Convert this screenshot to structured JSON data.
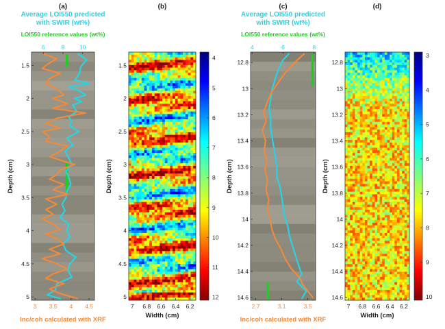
{
  "chart_data": [
    {
      "panel": "(a)",
      "type": "line",
      "top_title_line1": "Average LOI550 predicted",
      "top_title_line2": "with SWIR (wt%)",
      "top_title_color": "#29d3e6",
      "top_axis_ticks": [
        "6",
        "8",
        "10"
      ],
      "top_axis_values": [
        6,
        8,
        10
      ],
      "top_axis_range": [
        4.8,
        11.2
      ],
      "top_axis_color": "#29d3e6",
      "green_label": "LOI550 reference values (wt%)",
      "green_color": "#22cc22",
      "ylabel": "Depth (cm)",
      "y_ticks": [
        "1.5",
        "2",
        "2.5",
        "3",
        "3.5",
        "4",
        "4.5",
        "5"
      ],
      "y_tick_values": [
        1.5,
        2,
        2.5,
        3,
        3.5,
        4,
        4.5,
        5
      ],
      "ylim": [
        1.3,
        5.05
      ],
      "bottom_axis_ticks": [
        "3",
        "3.5",
        "4",
        "4.5"
      ],
      "bottom_axis_values": [
        3,
        3.5,
        4,
        4.5
      ],
      "bottom_axis_range": [
        2.9,
        4.65
      ],
      "xlabel": "Inc/coh calculated with XRF",
      "xlabel_color": "#f08a3c",
      "series": [
        {
          "color": "#29d3e6",
          "axis": "top",
          "depth": [
            1.32,
            1.42,
            1.52,
            1.62,
            1.72,
            1.78,
            1.82,
            1.9,
            1.95,
            2.0,
            2.05,
            2.1,
            2.2,
            2.28,
            2.35,
            2.42,
            2.5,
            2.6,
            2.7,
            2.8,
            2.9,
            3.0,
            3.1,
            3.2,
            3.3,
            3.4,
            3.5,
            3.6,
            3.7,
            3.8,
            3.9,
            4.0,
            4.1,
            4.2,
            4.3,
            4.4,
            4.5,
            4.6,
            4.7,
            4.8,
            4.9,
            4.97,
            5.03
          ],
          "values": [
            9.5,
            10.4,
            9.8,
            9.7,
            9.2,
            10.7,
            8.6,
            9.8,
            10.3,
            9.2,
            9.9,
            9.0,
            9.4,
            8.6,
            8.9,
            8.7,
            9.6,
            8.4,
            9.0,
            8.2,
            8.6,
            8.9,
            8.3,
            8.6,
            8.8,
            8.4,
            8.3,
            7.9,
            8.2,
            7.7,
            8.6,
            8.4,
            8.7,
            8.0,
            8.3,
            9.3,
            8.7,
            8.5,
            8.9,
            7.4,
            7.2,
            6.4,
            7.8
          ]
        },
        {
          "color": "#f08a3c",
          "axis": "bottom",
          "depth": [
            1.32,
            1.4,
            1.5,
            1.55,
            1.62,
            1.7,
            1.78,
            1.85,
            1.95,
            2.0,
            2.08,
            2.15,
            2.22,
            2.3,
            2.38,
            2.45,
            2.5,
            2.58,
            2.65,
            2.72,
            2.8,
            2.88,
            2.95,
            3.0,
            3.08,
            3.15,
            3.22,
            3.3,
            3.38,
            3.45,
            3.52,
            3.6,
            3.68,
            3.75,
            3.82,
            3.9,
            3.98,
            4.05,
            4.12,
            4.2,
            4.28,
            4.35,
            4.42,
            4.5,
            4.58,
            4.65,
            4.72,
            4.8,
            4.88,
            4.95,
            5.03
          ],
          "values": [
            3.2,
            3.6,
            3.3,
            3.2,
            3.7,
            3.4,
            3.3,
            3.6,
            3.8,
            3.5,
            3.9,
            3.5,
            4.4,
            3.6,
            3.3,
            3.7,
            3.2,
            3.4,
            3.3,
            3.9,
            3.7,
            3.4,
            3.8,
            4.1,
            3.7,
            3.6,
            3.4,
            3.8,
            3.5,
            3.9,
            3.3,
            3.6,
            3.3,
            3.5,
            3.2,
            3.5,
            3.7,
            3.3,
            3.6,
            3.8,
            3.4,
            3.7,
            3.2,
            3.6,
            3.9,
            3.5,
            3.3,
            3.8,
            3.4,
            3.7,
            4.2
          ]
        }
      ],
      "reference_segments": [
        {
          "depth_start": 1.33,
          "depth_end": 1.52,
          "value": 8.4
        },
        {
          "depth_start": 2.95,
          "depth_end": 3.42,
          "value": 8.4
        }
      ]
    },
    {
      "panel": "(b)",
      "type": "heatmap",
      "ylabel": "Depth (cm)",
      "y_ticks": [
        "1.5",
        "2",
        "2.5",
        "3",
        "3.5",
        "4",
        "4.5",
        "5"
      ],
      "y_tick_values": [
        1.5,
        2,
        2.5,
        3,
        3.5,
        4,
        4.5,
        5
      ],
      "ylim": [
        1.3,
        5.05
      ],
      "xlabel": "Width (cm)",
      "x_ticks": [
        "7",
        "6.8",
        "6.6",
        "6.4",
        "6.2"
      ],
      "x_tick_values": [
        7,
        6.8,
        6.6,
        6.4,
        6.2
      ],
      "xlim": [
        7.05,
        6.12
      ],
      "colorbar_ticks": [
        "4",
        "5",
        "6",
        "7",
        "8",
        "9",
        "10",
        "11",
        "12"
      ],
      "colorbar_values": [
        4,
        5,
        6,
        7,
        8,
        9,
        10,
        11,
        12
      ],
      "colorbar_range": [
        3.8,
        12.1
      ],
      "colormap": "jet-reversed"
    },
    {
      "panel": "(c)",
      "type": "line",
      "top_title_line1": "Average LOI550 predicted",
      "top_title_line2": "with SWIR (wt%)",
      "top_title_color": "#29d3e6",
      "top_axis_ticks": [
        "4",
        "6",
        "8"
      ],
      "top_axis_values": [
        4,
        6,
        8
      ],
      "top_axis_range": [
        3.9,
        8.1
      ],
      "top_axis_color": "#29d3e6",
      "green_label": "LOI550 reference values (wt%)",
      "green_color": "#22cc22",
      "ylabel": "Depth (cm)",
      "y_ticks": [
        "12.8",
        "13",
        "13.2",
        "13.4",
        "13.6",
        "13.8",
        "14",
        "14.2",
        "14.4",
        "14.6"
      ],
      "y_tick_values": [
        12.8,
        13,
        13.2,
        13.4,
        13.6,
        13.8,
        14,
        14.2,
        14.4,
        14.6
      ],
      "ylim": [
        12.72,
        14.62
      ],
      "bottom_axis_ticks": [
        "2.7",
        "3.1",
        "3.5"
      ],
      "bottom_axis_values": [
        2.7,
        3.1,
        3.5
      ],
      "bottom_axis_range": [
        2.62,
        3.62
      ],
      "xlabel": "Inc/coh calculated with XRF",
      "xlabel_color": "#f08a3c",
      "series": [
        {
          "color": "#29d3e6",
          "axis": "top",
          "depth": [
            12.73,
            12.78,
            12.85,
            12.92,
            13.0,
            13.08,
            13.15,
            13.22,
            13.3,
            13.38,
            13.45,
            13.52,
            13.6,
            13.68,
            13.75,
            13.82,
            13.9,
            13.98,
            14.05,
            14.12,
            14.2,
            14.28,
            14.35,
            14.42,
            14.48,
            14.55,
            14.61
          ],
          "values": [
            6.4,
            6.0,
            5.7,
            5.5,
            5.3,
            5.2,
            5.1,
            5.2,
            5.2,
            5.3,
            5.4,
            5.5,
            5.6,
            5.6,
            5.8,
            5.9,
            6.0,
            6.1,
            6.3,
            6.4,
            6.6,
            6.8,
            7.0,
            7.2,
            6.9,
            7.5,
            7.2
          ]
        },
        {
          "color": "#f08a3c",
          "axis": "bottom",
          "depth": [
            12.73,
            12.8,
            12.88,
            12.95,
            13.02,
            13.1,
            13.18,
            13.25,
            13.32,
            13.4,
            13.48,
            13.55,
            13.62,
            13.7,
            13.78,
            13.85,
            13.92,
            14.0,
            14.08,
            14.15,
            14.22,
            14.3,
            14.38,
            14.45,
            14.5,
            14.55,
            14.6
          ],
          "values": [
            3.45,
            3.3,
            3.15,
            3.05,
            2.95,
            2.88,
            2.82,
            2.86,
            2.8,
            2.85,
            2.83,
            2.87,
            2.84,
            2.88,
            2.86,
            2.9,
            2.88,
            2.92,
            2.95,
            3.0,
            3.08,
            3.15,
            3.25,
            3.38,
            3.42,
            3.5,
            3.58
          ]
        }
      ],
      "reference_segments": [
        {
          "depth_start": 12.73,
          "depth_end": 12.98,
          "value": 7.9
        },
        {
          "depth_start": 14.48,
          "depth_end": 14.62,
          "value": 5.0
        }
      ]
    },
    {
      "panel": "(d)",
      "type": "heatmap",
      "ylabel": "Depth (cm)",
      "y_ticks": [
        "12.8",
        "13",
        "13.2",
        "13.4",
        "13.6",
        "13.8",
        "14",
        "14.2",
        "14.4",
        "14.6"
      ],
      "y_tick_values": [
        12.8,
        13,
        13.2,
        13.4,
        13.6,
        13.8,
        14,
        14.2,
        14.4,
        14.6
      ],
      "ylim": [
        12.72,
        14.62
      ],
      "xlabel": "Width (cm)",
      "x_ticks": [
        "7",
        "6.8",
        "6.6",
        "6.4",
        "6.2"
      ],
      "x_tick_values": [
        7,
        6.8,
        6.6,
        6.4,
        6.2
      ],
      "xlim": [
        7.05,
        6.12
      ],
      "colorbar_ticks": [
        "3",
        "4",
        "5",
        "6",
        "7",
        "8",
        "9",
        "10"
      ],
      "colorbar_values": [
        3,
        4,
        5,
        6,
        7,
        8,
        9,
        10
      ],
      "colorbar_range": [
        2.9,
        10.1
      ],
      "colormap": "jet-reversed"
    }
  ]
}
